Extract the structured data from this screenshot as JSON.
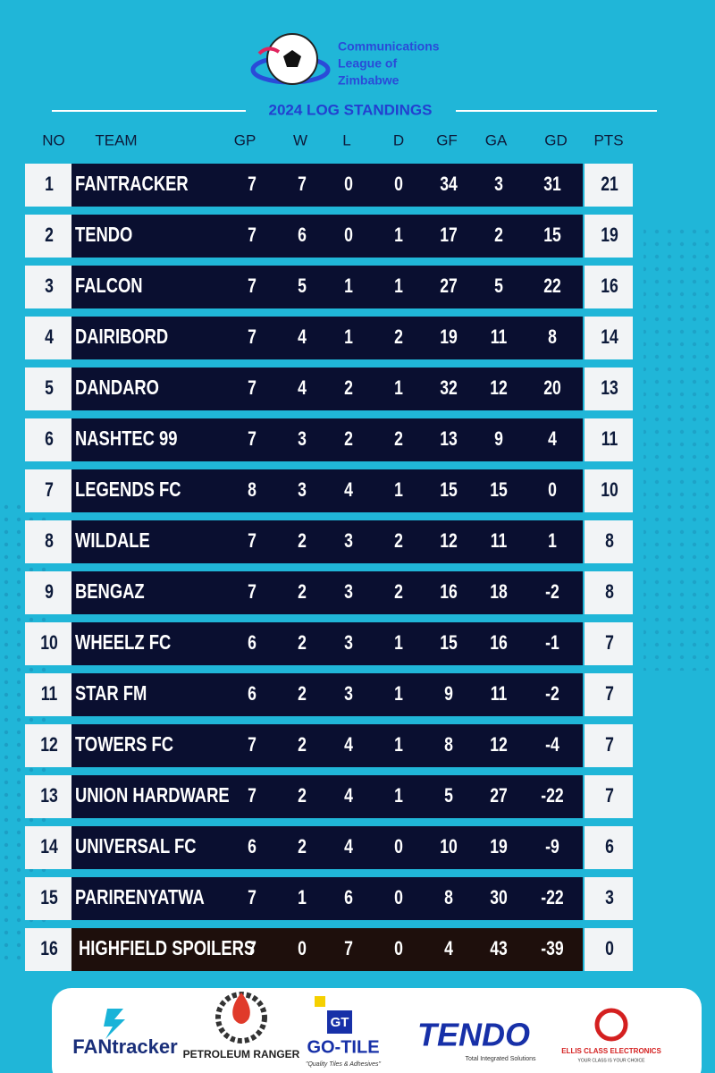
{
  "header": {
    "org_lines": [
      "Communications",
      "League of",
      "Zimbabwe"
    ],
    "title": "2024 LOG STANDINGS"
  },
  "table": {
    "columns": [
      "NO",
      "TEAM",
      "GP",
      "W",
      "L",
      "D",
      "GF",
      "GA",
      "GD",
      "PTS"
    ],
    "rows": [
      [
        1,
        "FANTRACKER",
        7,
        7,
        0,
        0,
        34,
        3,
        31,
        21
      ],
      [
        2,
        "TENDO",
        7,
        6,
        0,
        1,
        17,
        2,
        15,
        19
      ],
      [
        3,
        "FALCON",
        7,
        5,
        1,
        1,
        27,
        5,
        22,
        16
      ],
      [
        4,
        "DAIRIBORD",
        7,
        4,
        1,
        2,
        19,
        11,
        8,
        14
      ],
      [
        5,
        "DANDARO",
        7,
        4,
        2,
        1,
        32,
        12,
        20,
        13
      ],
      [
        6,
        "NASHTEC 99",
        7,
        3,
        2,
        2,
        13,
        9,
        4,
        11
      ],
      [
        7,
        "LEGENDS FC",
        8,
        3,
        4,
        1,
        15,
        15,
        0,
        10
      ],
      [
        8,
        "WILDALE",
        7,
        2,
        3,
        2,
        12,
        11,
        1,
        8
      ],
      [
        9,
        "BENGAZ",
        7,
        2,
        3,
        2,
        16,
        18,
        -2,
        8
      ],
      [
        10,
        "WHEELZ FC",
        6,
        2,
        3,
        1,
        15,
        16,
        -1,
        7
      ],
      [
        11,
        "STAR FM",
        6,
        2,
        3,
        1,
        9,
        11,
        -2,
        7
      ],
      [
        12,
        "TOWERS FC",
        7,
        2,
        4,
        1,
        8,
        12,
        -4,
        7
      ],
      [
        13,
        "UNION HARDWARE",
        7,
        2,
        4,
        1,
        5,
        27,
        -22,
        7
      ],
      [
        14,
        "UNIVERSAL FC",
        6,
        2,
        4,
        0,
        10,
        19,
        -9,
        6
      ],
      [
        15,
        "PARIRENYATWA",
        7,
        1,
        6,
        0,
        8,
        30,
        -22,
        3
      ],
      [
        16,
        "HIGHFIELD SPOILERS",
        7,
        0,
        7,
        0,
        4,
        43,
        -39,
        0
      ]
    ]
  },
  "sponsors": [
    {
      "name": "FANtracker"
    },
    {
      "name": "PETROLEUM RANGER"
    },
    {
      "mark": "GT",
      "name": "GO-TILE",
      "tagline": "\"Quality Tiles & Adhesives\""
    },
    {
      "name": "TENDO",
      "tagline": "Total Integrated Solutions"
    },
    {
      "name": "ELLIS CLASS ELECTRONICS",
      "tagline": "YOUR CLASS IS YOUR CHOICE"
    }
  ]
}
